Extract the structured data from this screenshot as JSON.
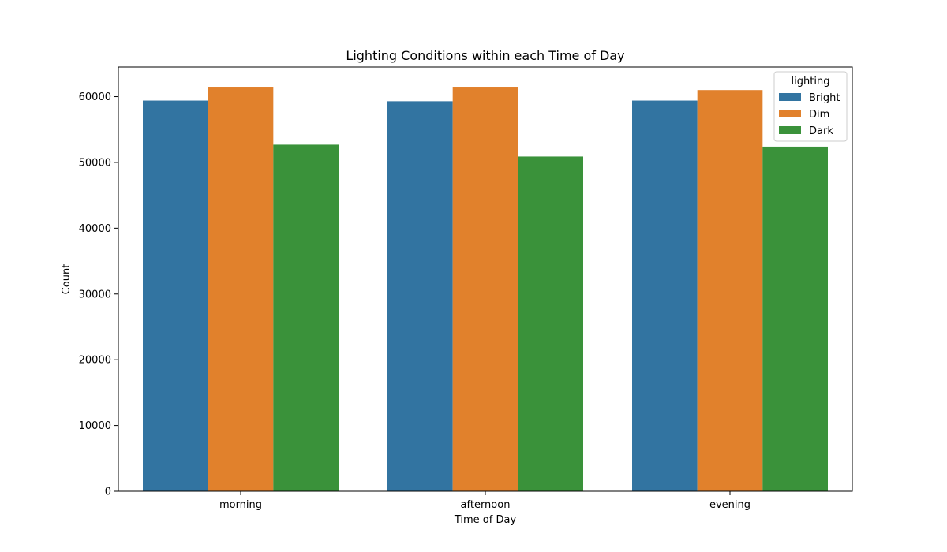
{
  "chart_data": {
    "type": "bar",
    "title": "Lighting Conditions within each Time of Day",
    "xlabel": "Time of Day",
    "ylabel": "Count",
    "categories": [
      "morning",
      "afternoon",
      "evening"
    ],
    "series": [
      {
        "name": "Bright",
        "color": "#3274a1",
        "values": [
          59400,
          59300,
          59400
        ]
      },
      {
        "name": "Dim",
        "color": "#e1812c",
        "values": [
          61500,
          61500,
          61000
        ]
      },
      {
        "name": "Dark",
        "color": "#3a923a",
        "values": [
          52700,
          50900,
          52400
        ]
      }
    ],
    "ylim": [
      0,
      64500
    ],
    "yticks": [
      0,
      10000,
      20000,
      30000,
      40000,
      50000,
      60000
    ],
    "ytick_labels": [
      "0",
      "10000",
      "20000",
      "30000",
      "40000",
      "50000",
      "60000"
    ],
    "legend": {
      "title": "lighting",
      "placement": "top-right"
    },
    "grid": false
  }
}
